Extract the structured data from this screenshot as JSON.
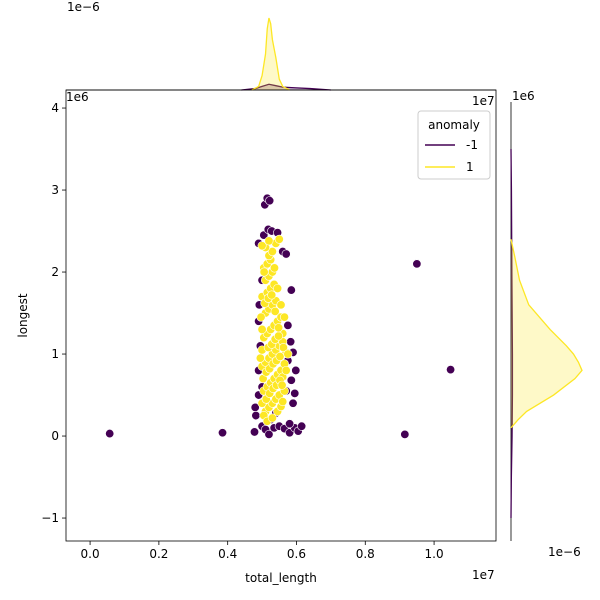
{
  "chart_data": {
    "type": "scatter",
    "kind": "jointplot",
    "xlabel": "total_length",
    "ylabel": "longest",
    "x_offset_label": "1e7",
    "y_offset_label": "1e6",
    "marg_x_density_offset_label": "1e−6",
    "marg_y_density_offset_label": "1e−6",
    "marg_x_corner_label": "1e7",
    "marg_y_corner_label": "1e6",
    "xlim": [
      -0.07,
      1.18
    ],
    "ylim": [
      -1.28,
      4.22
    ],
    "x_ticks": [
      0.0,
      0.2,
      0.4,
      0.6,
      0.8,
      1.0
    ],
    "x_tick_labels": [
      "0.0",
      "0.2",
      "0.4",
      "0.6",
      "0.8",
      "1.0"
    ],
    "y_ticks": [
      -1,
      0,
      1,
      2,
      3,
      4
    ],
    "y_tick_labels": [
      "−1",
      "0",
      "1",
      "2",
      "3",
      "4"
    ],
    "grid": false,
    "legend": {
      "title": "anomaly",
      "placement": "top-right",
      "entries": [
        {
          "label": "-1",
          "color": "#440154"
        },
        {
          "label": "1",
          "color": "#fde725"
        }
      ]
    },
    "series": [
      {
        "name": "-1",
        "color": "#440154",
        "points": [
          [
            0.057,
            0.03
          ],
          [
            0.385,
            0.04
          ],
          [
            0.915,
            0.02
          ],
          [
            0.95,
            2.1
          ],
          [
            1.048,
            0.81
          ],
          [
            0.508,
            2.82
          ],
          [
            0.515,
            2.9
          ],
          [
            0.522,
            2.87
          ],
          [
            0.505,
            2.45
          ],
          [
            0.518,
            2.52
          ],
          [
            0.528,
            2.5
          ],
          [
            0.545,
            2.48
          ],
          [
            0.56,
            2.25
          ],
          [
            0.57,
            2.22
          ],
          [
            0.585,
            1.78
          ],
          [
            0.49,
            2.35
          ],
          [
            0.49,
            1.4
          ],
          [
            0.495,
            1.1
          ],
          [
            0.49,
            0.8
          ],
          [
            0.482,
            0.25
          ],
          [
            0.48,
            0.35
          ],
          [
            0.478,
            0.05
          ],
          [
            0.5,
            0.12
          ],
          [
            0.51,
            0.08
          ],
          [
            0.52,
            0.02
          ],
          [
            0.535,
            0.1
          ],
          [
            0.55,
            0.12
          ],
          [
            0.565,
            0.09
          ],
          [
            0.58,
            0.04
          ],
          [
            0.595,
            0.1
          ],
          [
            0.605,
            0.06
          ],
          [
            0.615,
            0.12
          ],
          [
            0.57,
            0.55
          ],
          [
            0.59,
            0.4
          ],
          [
            0.595,
            0.52
          ],
          [
            0.585,
            0.68
          ],
          [
            0.598,
            0.8
          ],
          [
            0.575,
            0.92
          ],
          [
            0.59,
            1.02
          ],
          [
            0.583,
            1.15
          ],
          [
            0.575,
            1.35
          ],
          [
            0.5,
            0.6
          ],
          [
            0.49,
            0.5
          ],
          [
            0.492,
            1.6
          ],
          [
            0.5,
            1.9
          ],
          [
            0.58,
            0.15
          ],
          [
            0.54,
            0.28
          ],
          [
            0.525,
            0.2
          ]
        ]
      },
      {
        "name": "1",
        "color": "#fde725",
        "points": [
          [
            0.51,
            0.3
          ],
          [
            0.52,
            0.35
          ],
          [
            0.53,
            0.4
          ],
          [
            0.54,
            0.45
          ],
          [
            0.55,
            0.5
          ],
          [
            0.505,
            0.55
          ],
          [
            0.515,
            0.6
          ],
          [
            0.525,
            0.65
          ],
          [
            0.535,
            0.7
          ],
          [
            0.545,
            0.75
          ],
          [
            0.555,
            0.8
          ],
          [
            0.5,
            0.85
          ],
          [
            0.51,
            0.9
          ],
          [
            0.52,
            0.95
          ],
          [
            0.53,
            1.0
          ],
          [
            0.54,
            1.05
          ],
          [
            0.55,
            1.1
          ],
          [
            0.56,
            1.15
          ],
          [
            0.505,
            1.2
          ],
          [
            0.515,
            1.25
          ],
          [
            0.525,
            1.3
          ],
          [
            0.535,
            1.35
          ],
          [
            0.545,
            1.4
          ],
          [
            0.555,
            1.45
          ],
          [
            0.51,
            1.5
          ],
          [
            0.52,
            1.55
          ],
          [
            0.53,
            1.6
          ],
          [
            0.54,
            1.65
          ],
          [
            0.5,
            1.7
          ],
          [
            0.515,
            1.75
          ],
          [
            0.525,
            1.8
          ],
          [
            0.535,
            1.85
          ],
          [
            0.51,
            1.9
          ],
          [
            0.52,
            1.95
          ],
          [
            0.53,
            2.0
          ],
          [
            0.505,
            2.05
          ],
          [
            0.515,
            2.1
          ],
          [
            0.525,
            2.15
          ],
          [
            0.52,
            2.2
          ],
          [
            0.53,
            2.25
          ],
          [
            0.51,
            2.3
          ],
          [
            0.54,
            2.35
          ],
          [
            0.52,
            2.38
          ],
          [
            0.55,
            2.4
          ],
          [
            0.5,
            2.32
          ],
          [
            0.565,
            0.55
          ],
          [
            0.56,
            0.72
          ],
          [
            0.565,
            0.88
          ],
          [
            0.57,
            1.02
          ],
          [
            0.56,
            1.25
          ],
          [
            0.565,
            1.45
          ],
          [
            0.555,
            1.6
          ],
          [
            0.545,
            1.8
          ],
          [
            0.5,
            0.4
          ],
          [
            0.505,
            0.25
          ],
          [
            0.515,
            0.18
          ],
          [
            0.53,
            0.22
          ],
          [
            0.545,
            0.3
          ],
          [
            0.555,
            0.36
          ],
          [
            0.56,
            0.42
          ],
          [
            0.495,
            0.95
          ],
          [
            0.5,
            1.05
          ],
          [
            0.5,
            1.3
          ],
          [
            0.497,
            1.45
          ],
          [
            0.503,
            0.7
          ],
          [
            0.512,
            0.78
          ],
          [
            0.522,
            0.82
          ],
          [
            0.532,
            0.88
          ],
          [
            0.542,
            0.92
          ],
          [
            0.552,
            0.97
          ],
          [
            0.518,
            1.08
          ],
          [
            0.528,
            1.12
          ],
          [
            0.538,
            1.18
          ],
          [
            0.548,
            1.22
          ],
          [
            0.512,
            0.45
          ],
          [
            0.522,
            0.52
          ],
          [
            0.532,
            0.58
          ],
          [
            0.542,
            0.62
          ],
          [
            0.552,
            0.68
          ],
          [
            0.508,
            1.62
          ],
          [
            0.518,
            1.68
          ],
          [
            0.528,
            1.72
          ],
          [
            0.538,
            1.52
          ],
          [
            0.548,
            1.32
          ],
          [
            0.558,
            0.62
          ],
          [
            0.562,
            1.08
          ],
          [
            0.57,
            0.8
          ],
          [
            0.575,
            1.0
          ],
          [
            0.506,
            2.0
          ],
          [
            0.536,
            2.05
          ]
        ]
      }
    ],
    "marginal_x_density": {
      "series": [
        {
          "name": "-1",
          "color": "#440154",
          "x": [
            0.44,
            0.48,
            0.5,
            0.52,
            0.54,
            0.56,
            0.6,
            0.64,
            0.7
          ],
          "density": [
            0.0,
            0.02,
            0.05,
            0.08,
            0.06,
            0.04,
            0.03,
            0.02,
            0.0
          ]
        },
        {
          "name": "1",
          "color": "#fde725",
          "x": [
            0.47,
            0.49,
            0.5,
            0.51,
            0.515,
            0.52,
            0.525,
            0.53,
            0.54,
            0.55,
            0.56,
            0.58
          ],
          "density": [
            0.0,
            0.05,
            0.2,
            0.5,
            0.85,
            1.0,
            0.92,
            0.7,
            0.45,
            0.15,
            0.05,
            0.0
          ]
        }
      ]
    },
    "marginal_y_density": {
      "series": [
        {
          "name": "-1",
          "color": "#440154",
          "y": [
            -1.0,
            -0.5,
            0.0,
            0.5,
            1.0,
            2.0,
            3.0,
            3.5
          ],
          "density": [
            0.0,
            0.005,
            0.015,
            0.02,
            0.02,
            0.012,
            0.006,
            0.0
          ]
        },
        {
          "name": "1",
          "color": "#fde725",
          "y": [
            0.1,
            0.2,
            0.3,
            0.5,
            0.7,
            0.8,
            0.9,
            1.0,
            1.1,
            1.3,
            1.6,
            1.9,
            2.2,
            2.4
          ],
          "density": [
            0.0,
            0.1,
            0.22,
            0.6,
            0.9,
            1.0,
            0.95,
            0.88,
            0.78,
            0.55,
            0.25,
            0.12,
            0.05,
            0.0
          ]
        }
      ]
    }
  }
}
